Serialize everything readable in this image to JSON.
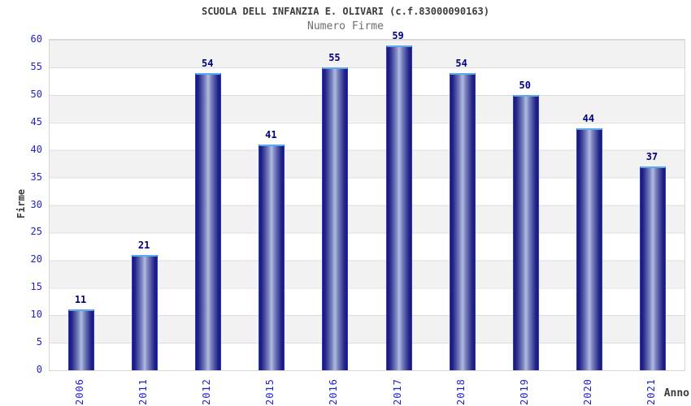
{
  "header": {
    "title": "SCUOLA DELL INFANZIA E. OLIVARI (c.f.83000090163)",
    "subtitle": "Numero Firme"
  },
  "chart_data": {
    "type": "bar",
    "title": "SCUOLA DELL INFANZIA E. OLIVARI (c.f.83000090163)",
    "subtitle": "Numero Firme",
    "xlabel": "Anno",
    "ylabel": "Firme",
    "categories": [
      "2006",
      "2011",
      "2012",
      "2015",
      "2016",
      "2017",
      "2018",
      "2019",
      "2020",
      "2021"
    ],
    "values": [
      11,
      21,
      54,
      41,
      55,
      59,
      54,
      50,
      44,
      37
    ],
    "ylim": [
      0,
      60
    ],
    "ytick_step": 5,
    "y_ticks": [
      0,
      5,
      10,
      15,
      20,
      25,
      30,
      35,
      40,
      45,
      50,
      55,
      60
    ],
    "grid": "horizontal bands alternating gray/white every 5 units, light gridlines",
    "legend": "none",
    "bar_value_labels_shown": true,
    "colors": {
      "bar_dark": "#181875",
      "bar_mid": "#232389",
      "bar_mid2": "#7c86c0",
      "bar_highlight": "#b4bce0",
      "bar_border": "#2a3bd0",
      "bar_top_border": "#5fa8f0",
      "axis_tick_label": "#2222cc",
      "value_label": "#000082",
      "title": "#3c3c3c",
      "subtitle": "#6e6e6e",
      "band_gray": "#f2f2f2",
      "band_white": "#ffffff",
      "grid_line": "#dcdcdc",
      "plot_border": "#d6d6d6"
    }
  }
}
